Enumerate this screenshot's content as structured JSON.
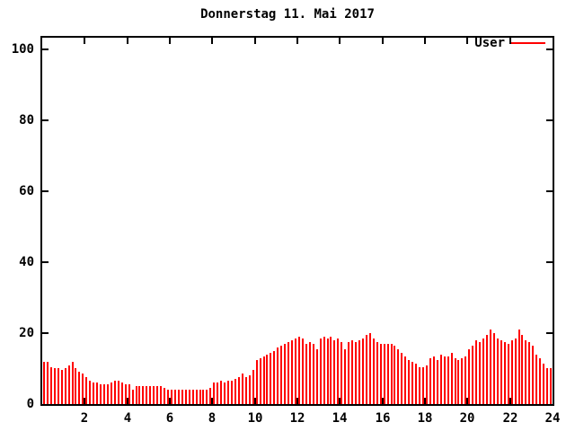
{
  "title": "Donnerstag 11. Mai 2017",
  "legend": {
    "label": "User"
  },
  "colors": {
    "series": "#ff0000",
    "axis": "#000000",
    "background": "#ffffff",
    "text": "#000000"
  },
  "chart_data": {
    "type": "bar",
    "title": "Donnerstag 11. Mai 2017",
    "series_name": "User",
    "x_unit": "hour of day",
    "sample_interval_minutes": 10,
    "xlim": [
      0,
      24
    ],
    "ylim": [
      0,
      104
    ],
    "y_ticks": [
      0,
      20,
      40,
      60,
      80,
      100
    ],
    "x_ticks": [
      2,
      4,
      6,
      8,
      10,
      12,
      14,
      16,
      18,
      20,
      22,
      24
    ],
    "grid": false,
    "legend_position": "top-right-inside",
    "values": [
      12,
      12,
      10.5,
      10,
      10,
      9.5,
      10,
      11,
      12,
      10,
      9,
      8.5,
      7.5,
      6.5,
      6,
      6,
      5.5,
      5.5,
      5.5,
      6,
      6.5,
      6.5,
      6,
      5.5,
      5.5,
      4,
      5,
      5,
      5,
      5,
      5,
      5,
      5,
      5,
      4.5,
      4,
      4,
      4,
      4,
      4,
      4,
      4,
      4,
      4,
      4,
      4,
      4,
      4.5,
      6,
      6,
      6.5,
      6,
      6.5,
      6.5,
      7,
      7.5,
      8.5,
      7.5,
      8,
      9.5,
      12.5,
      13,
      13.5,
      14,
      14.5,
      15,
      16,
      16.5,
      17,
      17.5,
      18,
      18.5,
      19,
      18.5,
      17,
      17.5,
      17,
      15.5,
      18.5,
      19,
      18.5,
      19,
      18,
      18.5,
      17.5,
      15.5,
      17.5,
      18,
      17.5,
      18,
      18.5,
      19.5,
      20,
      18.5,
      17.5,
      17,
      17,
      17,
      17,
      16.5,
      15.5,
      14.5,
      13.5,
      12.5,
      12,
      11.5,
      10.5,
      10.5,
      11,
      13,
      13.5,
      12.5,
      14,
      13.5,
      13.5,
      14.5,
      13,
      12.5,
      13,
      13.5,
      15.5,
      16.5,
      18,
      17.5,
      18.5,
      19.5,
      21,
      20,
      18.5,
      18,
      17.5,
      17,
      18,
      18.5,
      21,
      19.5,
      18,
      17.5,
      16.5,
      14,
      13,
      11.5,
      10,
      10
    ]
  }
}
